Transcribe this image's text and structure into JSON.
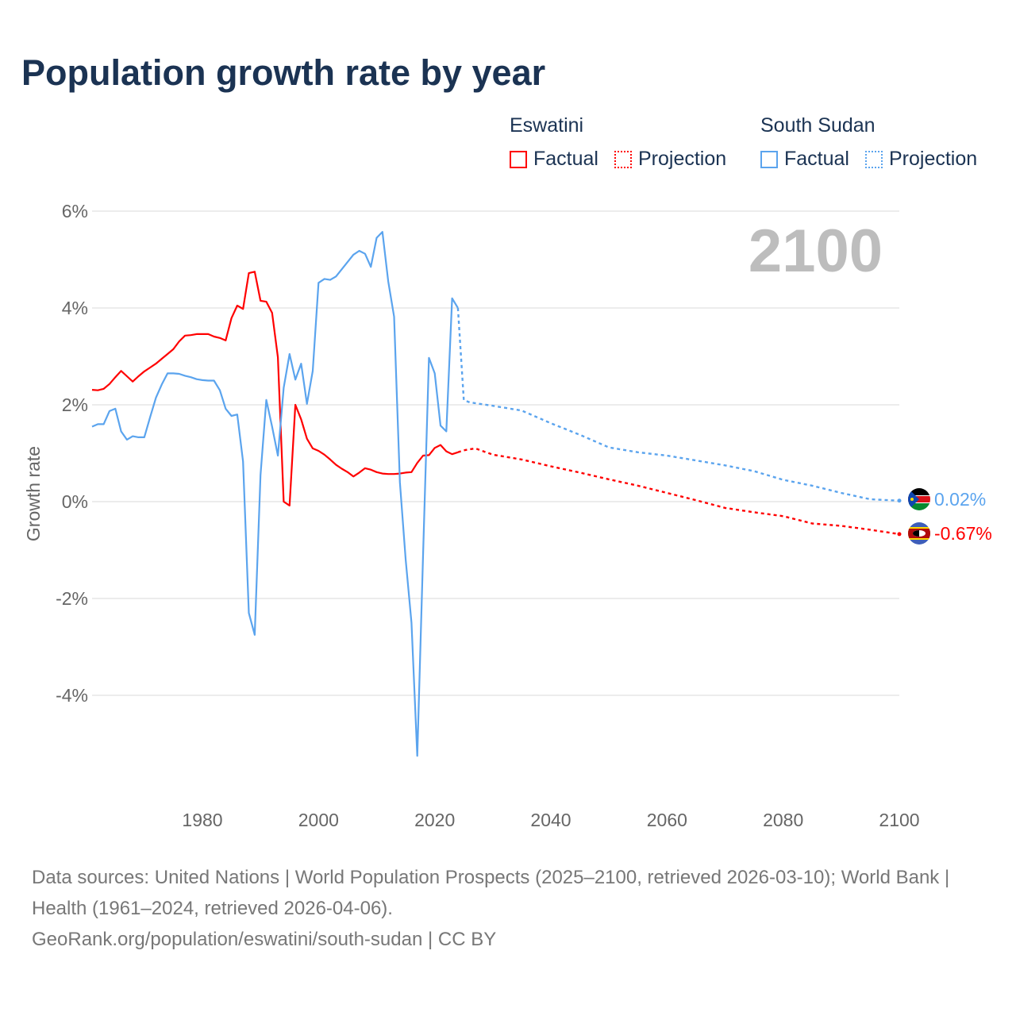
{
  "chart_data": {
    "type": "line",
    "title": "Population growth rate by year",
    "ylabel": "Growth rate",
    "xlabel": "",
    "xlim": [
      1961,
      2100
    ],
    "ylim": [
      -5.3,
      6
    ],
    "x_ticks": [
      1980,
      2000,
      2020,
      2040,
      2060,
      2080,
      2100
    ],
    "x_tick_labels": [
      "1980",
      "2000",
      "2020",
      "2040",
      "2060",
      "2080",
      "2100"
    ],
    "y_ticks": [
      6,
      4,
      2,
      0,
      -2,
      -4
    ],
    "y_tick_labels": [
      "6%",
      "4%",
      "2%",
      "0%",
      "-2%",
      "-4%"
    ],
    "grid": true,
    "year_display": "2100",
    "legend": {
      "placement": "top-right",
      "groups": [
        {
          "country": "Eswatini",
          "factual_label": "Factual",
          "projection_label": "Projection",
          "color": "#ff0000"
        },
        {
          "country": "South Sudan",
          "factual_label": "Factual",
          "projection_label": "Projection",
          "color": "#5ba4ee"
        }
      ]
    },
    "series": [
      {
        "name": "Eswatini",
        "color": "#ff0000",
        "end_label": "-0.67%",
        "factual": {
          "start_year": 1961,
          "values": [
            2.31,
            2.3,
            2.33,
            2.43,
            2.57,
            2.7,
            2.59,
            2.48,
            2.59,
            2.69,
            2.77,
            2.85,
            2.95,
            3.05,
            3.15,
            3.31,
            3.43,
            3.44,
            3.46,
            3.46,
            3.46,
            3.41,
            3.38,
            3.33,
            3.79,
            4.05,
            3.98,
            4.72,
            4.75,
            4.15,
            4.13,
            3.9,
            2.98,
            0.0,
            -0.08,
            2.0,
            1.7,
            1.3,
            1.1,
            1.05,
            0.97,
            0.87,
            0.76,
            0.68,
            0.61,
            0.52,
            0.6,
            0.69,
            0.66,
            0.61,
            0.58,
            0.57,
            0.57,
            0.58,
            0.6,
            0.61,
            0.8,
            0.95,
            0.96,
            1.11,
            1.17,
            1.04,
            0.98,
            1.02
          ]
        },
        "projection": {
          "x": [
            2024,
            2025,
            2027,
            2030,
            2035,
            2040,
            2045,
            2050,
            2055,
            2060,
            2065,
            2070,
            2075,
            2080,
            2085,
            2090,
            2095,
            2100
          ],
          "values": [
            1.02,
            1.06,
            1.1,
            0.97,
            0.87,
            0.73,
            0.6,
            0.46,
            0.33,
            0.18,
            0.03,
            -0.13,
            -0.22,
            -0.3,
            -0.45,
            -0.5,
            -0.58,
            -0.67
          ]
        }
      },
      {
        "name": "South Sudan",
        "color": "#5ba4ee",
        "end_label": "0.02%",
        "factual": {
          "start_year": 1961,
          "values": [
            1.55,
            1.6,
            1.6,
            1.87,
            1.92,
            1.45,
            1.28,
            1.35,
            1.33,
            1.33,
            1.75,
            2.15,
            2.42,
            2.65,
            2.65,
            2.64,
            2.6,
            2.57,
            2.53,
            2.51,
            2.5,
            2.5,
            2.3,
            1.92,
            1.77,
            1.8,
            0.83,
            -2.3,
            -2.75,
            0.55,
            2.1,
            1.55,
            0.95,
            2.35,
            3.05,
            2.52,
            2.85,
            2.02,
            2.7,
            4.52,
            4.6,
            4.58,
            4.65,
            4.8,
            4.95,
            5.1,
            5.18,
            5.12,
            4.85,
            5.45,
            5.57,
            4.55,
            3.82,
            0.4,
            -1.2,
            -2.5,
            -5.25,
            -1.1,
            2.97,
            2.65,
            1.57,
            1.45,
            4.2,
            4.0
          ]
        },
        "projection": {
          "x": [
            2024,
            2025,
            2026,
            2030,
            2035,
            2040,
            2045,
            2050,
            2055,
            2060,
            2065,
            2070,
            2075,
            2080,
            2085,
            2090,
            2095,
            2100
          ],
          "values": [
            4.0,
            2.1,
            2.05,
            1.98,
            1.88,
            1.62,
            1.38,
            1.12,
            1.02,
            0.95,
            0.85,
            0.75,
            0.63,
            0.45,
            0.33,
            0.18,
            0.05,
            0.02
          ]
        }
      }
    ]
  },
  "footer": {
    "sources": "Data sources: United Nations | World Population Prospects (2025–2100, retrieved 2026-03-10); World Bank | Health (1961–2024, retrieved 2026-04-06).",
    "attribution": "GeoRank.org/population/eswatini/south-sudan | CC BY"
  }
}
